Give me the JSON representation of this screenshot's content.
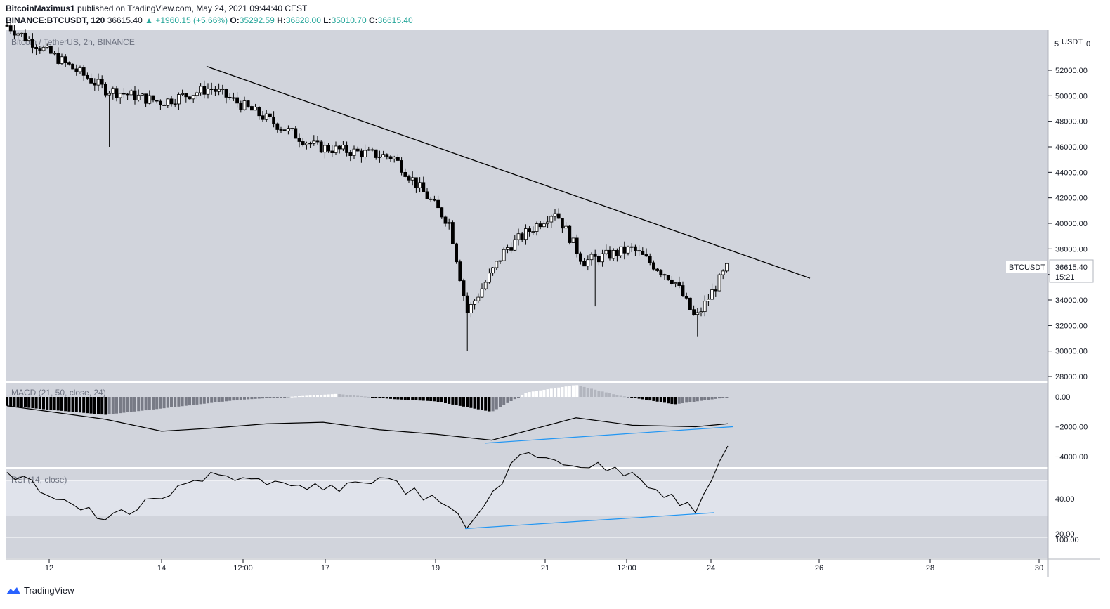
{
  "header": {
    "author": "BitcoinMaximus1",
    "published_text": "published on TradingView.com, May 24, 2021 09:44:40 CEST",
    "symbol_line": "BINANCE:BTCUSDT, 120",
    "last": "36615.40",
    "change": "▲ +1960.15 (+5.66%)",
    "o_label": "O:",
    "o": "35292.59",
    "h_label": "H:",
    "h": "36828.00",
    "l_label": "L:",
    "l": "35010.70",
    "c_label": "C:",
    "c": "36615.40"
  },
  "main_pane": {
    "label": "Bitcoin / TetherUS, 2h, BINANCE",
    "currency": "USDT",
    "price_tag_name": "BTCUSDT",
    "price_tag_value": "36615.40",
    "price_tag_timer": "15:21",
    "top_tick": "5",
    "top_tick2": "0"
  },
  "macd_pane": {
    "label": "MACD (21, 50, close, 24)"
  },
  "rsi_pane": {
    "label": "RSI (14, close)"
  },
  "footer": {
    "brand": "TradingView"
  },
  "colors": {
    "background": "#d1d4dc",
    "candle_up": "#ffffff",
    "candle_down": "#000000",
    "trendline": "#000000",
    "divergence": "#2196f3",
    "hist_up": "#ffffff",
    "hist_down": "#000000",
    "rsi_band": "#e0e3eb"
  },
  "chart_data": [
    {
      "type": "candlestick",
      "title": "Bitcoin / TetherUS, 2h, BINANCE",
      "ylabel": "USDT",
      "ylim": [
        27000,
        55500
      ],
      "x_ticks": [
        "12",
        "14",
        "12:00",
        "17",
        "19",
        "21",
        "12:00",
        "24",
        "26",
        "28",
        "30"
      ],
      "y_ticks": [
        28000,
        30000,
        32000,
        34000,
        36000,
        38000,
        40000,
        42000,
        44000,
        46000,
        48000,
        50000,
        52000
      ],
      "y_tick_labels": [
        "28000.00",
        "30000.00",
        "32000.00",
        "34000.00",
        "36000.00",
        "38000.00",
        "40000.00",
        "42000.00",
        "44000.00",
        "46000.00",
        "48000.00",
        "50000.00",
        "52000.00"
      ],
      "close_anchors": [
        {
          "x": "May 12",
          "close": 55500
        },
        {
          "x": "May 13",
          "close": 50500
        },
        {
          "x": "May 14",
          "close": 49500
        },
        {
          "x": "May 15",
          "close": 50600
        },
        {
          "x": "May 16",
          "close": 48500
        },
        {
          "x": "May 17",
          "close": 46000
        },
        {
          "x": "May 18",
          "close": 45200
        },
        {
          "x": "May 19",
          "close": 40000
        },
        {
          "x": "May 19",
          "close": 33000
        },
        {
          "x": "May 20",
          "close": 38000
        },
        {
          "x": "May 21",
          "close": 41000
        },
        {
          "x": "May 21",
          "close": 37000
        },
        {
          "x": "May 22",
          "close": 38000
        },
        {
          "x": "May 23",
          "close": 35500
        },
        {
          "x": "May 23",
          "close": 32500
        },
        {
          "x": "May 24",
          "close": 36615.4
        }
      ],
      "low_extremes": [
        {
          "x": "May 13",
          "low": 46000
        },
        {
          "x": "May 19",
          "low": 30000
        },
        {
          "x": "May 21",
          "low": 33500
        },
        {
          "x": "May 23",
          "low": 31100
        }
      ],
      "trendline": {
        "start": {
          "x": "May 15",
          "y": 52300
        },
        "end": {
          "x": "May 25",
          "y": 35700
        }
      },
      "last_price": 36615.4
    },
    {
      "type": "bar",
      "title": "MACD (21, 50, close, 24)",
      "ylim": [
        -5000,
        1000
      ],
      "y_ticks": [
        0,
        -2000,
        -4000
      ],
      "y_tick_labels": [
        "0.00",
        "−2000.00",
        "−4000.00"
      ],
      "macd_line": [
        {
          "x": "May 12",
          "y": -600
        },
        {
          "x": "May 13",
          "y": -1500
        },
        {
          "x": "May 14",
          "y": -2300
        },
        {
          "x": "May 15",
          "y": -2100
        },
        {
          "x": "May 16",
          "y": -1800
        },
        {
          "x": "May 17",
          "y": -1700
        },
        {
          "x": "May 18",
          "y": -2200
        },
        {
          "x": "May 19",
          "y": -2500
        },
        {
          "x": "May 20",
          "y": -2900
        },
        {
          "x": "May 21",
          "y": -1400
        },
        {
          "x": "May 22",
          "y": -1900
        },
        {
          "x": "May 23",
          "y": -2000
        },
        {
          "x": "May 24",
          "y": -1800
        }
      ],
      "histogram_range": [
        -1200,
        800
      ],
      "divergence_line": {
        "start": {
          "x": "May 19",
          "y": -3100
        },
        "end": {
          "x": "May 24",
          "y": -2000
        }
      }
    },
    {
      "type": "line",
      "title": "RSI (14, close)",
      "ylim": [
        10,
        75
      ],
      "y_ticks": [
        40,
        20
      ],
      "y_tick_labels": [
        "40.00",
        "20.00"
      ],
      "band": [
        30,
        70
      ],
      "band_label_partial": "100.00",
      "rsi_points": [
        {
          "x": "May 12",
          "y": 55
        },
        {
          "x": "May 13",
          "y": 28
        },
        {
          "x": "May 14",
          "y": 40
        },
        {
          "x": "May 15",
          "y": 55
        },
        {
          "x": "May 16",
          "y": 48
        },
        {
          "x": "May 17",
          "y": 45
        },
        {
          "x": "May 18",
          "y": 52
        },
        {
          "x": "May 19",
          "y": 35
        },
        {
          "x": "May 19",
          "y": 23
        },
        {
          "x": "May 20",
          "y": 65
        },
        {
          "x": "May 21",
          "y": 62
        },
        {
          "x": "May 22",
          "y": 55
        },
        {
          "x": "May 23",
          "y": 32
        },
        {
          "x": "May 24",
          "y": 70
        }
      ],
      "divergence_line": {
        "start": {
          "x": "May 19",
          "y": 23
        },
        "end": {
          "x": "May 24",
          "y": 32
        }
      }
    }
  ]
}
